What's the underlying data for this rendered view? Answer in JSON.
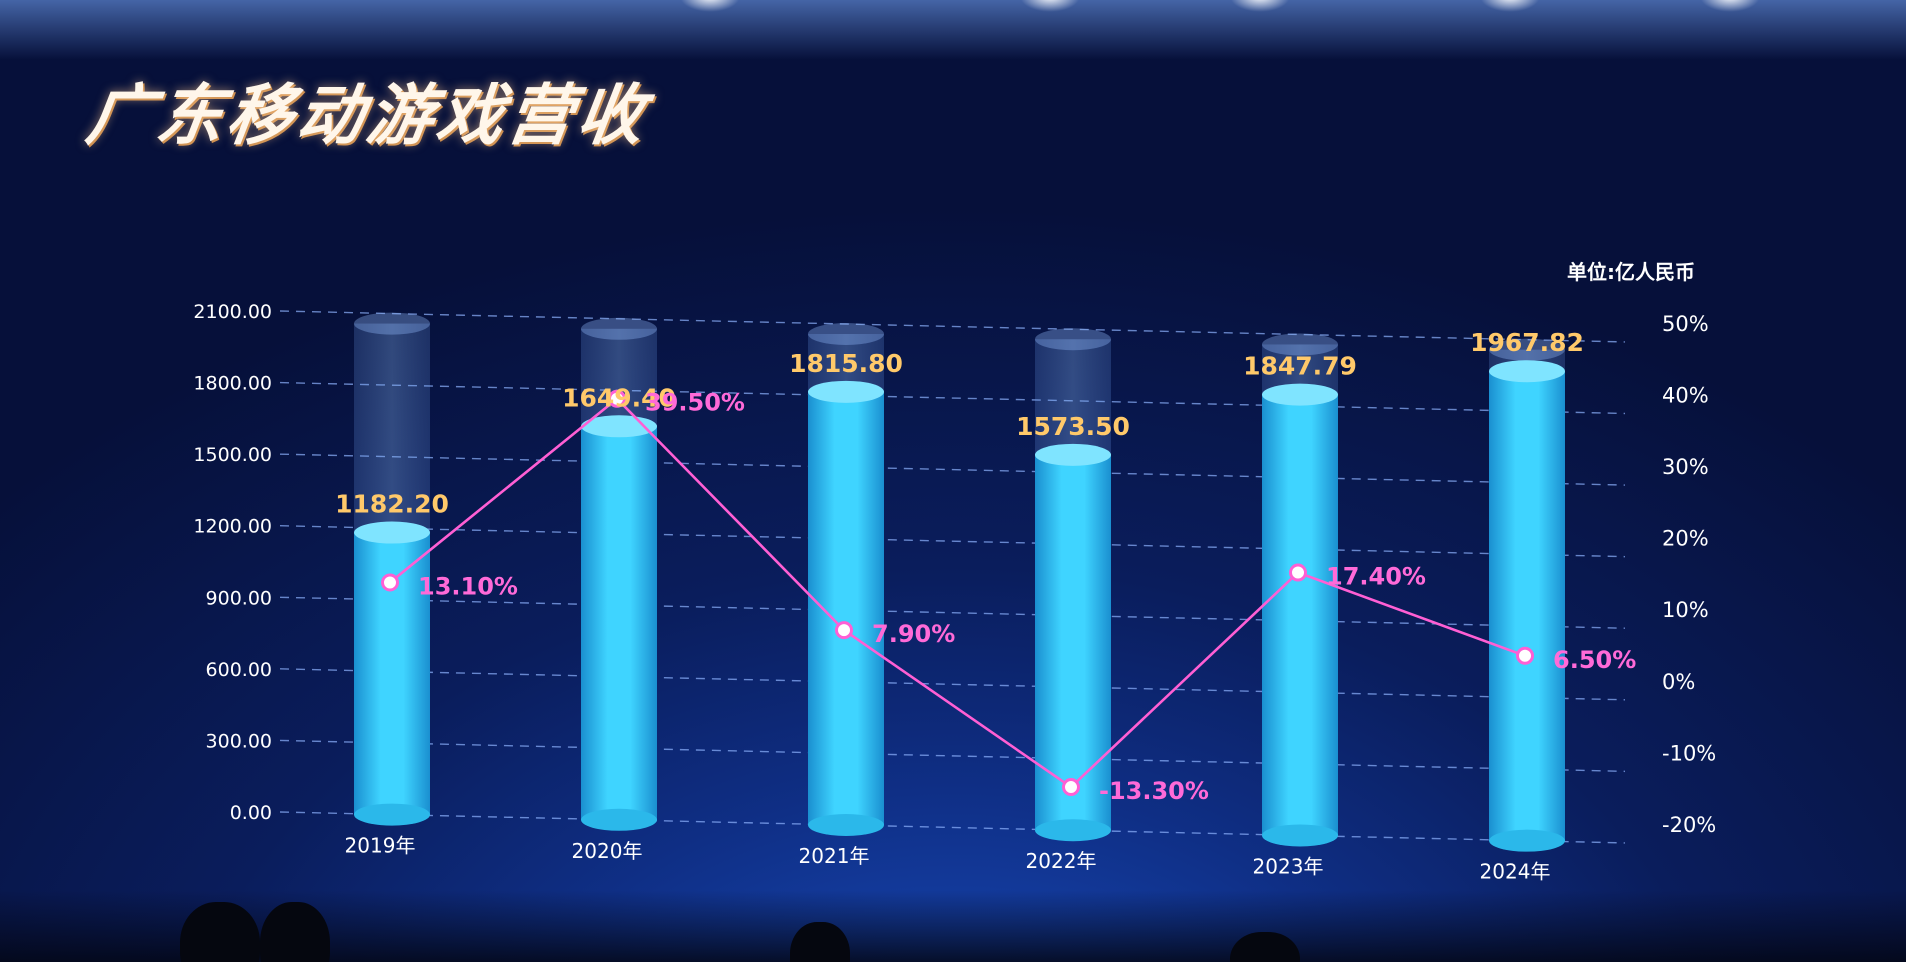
{
  "title": "广东移动游戏营收",
  "unit": "单位:亿人民币",
  "colors": {
    "bar": "#2fc8f2",
    "bar_value_label": "#ffc96a",
    "line": "#ff5fd4",
    "gridline": "#8fb4ff"
  },
  "chart_data": {
    "type": "bar",
    "categories": [
      "2019年",
      "2020年",
      "2021年",
      "2022年",
      "2023年",
      "2024年"
    ],
    "series": [
      {
        "values": [
          1182.2,
          1649.4,
          1815.8,
          1573.5,
          1847.79,
          1967.82
        ],
        "type": "bar"
      },
      {
        "values": [
          13.1,
          39.5,
          7.9,
          -13.3,
          17.4,
          6.5
        ],
        "type": "line",
        "axis": "right"
      }
    ],
    "bar_labels": [
      "1182.20",
      "1649.40",
      "1815.80",
      "1573.50",
      "1847.79",
      "1967.82"
    ],
    "line_labels": [
      "13.10%",
      "39.50%",
      "7.90%",
      "-13.30%",
      "17.40%",
      "6.50%"
    ],
    "y_left_ticks": [
      "0.00",
      "300.00",
      "600.00",
      "900.00",
      "1200.00",
      "1500.00",
      "1800.00",
      "2100.00"
    ],
    "y_left_lim": [
      0,
      2100
    ],
    "y_right_ticks": [
      "-20%",
      "-10%",
      "0%",
      "10%",
      "20%",
      "30%",
      "40%",
      "50%"
    ],
    "y_right_lim": [
      -20,
      50
    ],
    "grid": true
  }
}
